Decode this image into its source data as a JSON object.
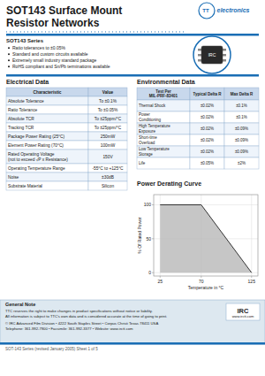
{
  "chart_data": {
    "type": "area",
    "title": "Power Derating Curve",
    "x_label": "Temperature in °C",
    "y_label": "% Of Rated Power",
    "x": [
      25,
      70,
      125
    ],
    "values": [
      100,
      100,
      0
    ],
    "xlim": [
      18,
      132
    ],
    "ylim": [
      -5,
      115
    ],
    "xticks": [
      25,
      70,
      125
    ],
    "yticks": [
      0,
      50,
      100
    ],
    "grid": true,
    "color": "#b8b8b8"
  },
  "page": {
    "title": [
      "SOT143 Surface Mount",
      "Resistor Networks"
    ],
    "logo": [
      "TT",
      "electronics"
    ],
    "series_label": "SOT143 Series",
    "bullets": [
      "Ratio tolerances to ±0.05%",
      "Standard and custom circuits available",
      "Extremely small industry standard package",
      "RoHS compliant and Sn/Pb terminations available"
    ],
    "chip_label": "IRC",
    "tables": [
      {
        "title": "Electrical Data",
        "headers": [
          "Characteristic",
          "Value"
        ],
        "rows": [
          [
            "Absolute Tolerance",
            "To ±0.1%"
          ],
          [
            "Ratio Tolerance",
            "To ±0.05%"
          ],
          [
            "Absolute TCR",
            "To ±25ppm/°C"
          ],
          [
            "Tracking TCR",
            "To ±25ppm/°C"
          ],
          [
            "Package Power Rating (25°C)",
            "250mW"
          ],
          [
            "Element Power Rating (70°C)",
            "100mW"
          ],
          [
            "Rated Operating Voltage\n(not to exceed √P x Resistance)",
            "150V"
          ],
          [
            "Operating Temperature Range",
            "-55°C to +125°C"
          ],
          [
            "Noise",
            "±30dB"
          ],
          [
            "Substrate Material",
            "Silicon"
          ]
        ]
      },
      {
        "title": "Environmental Data",
        "headers": [
          "Test Per\nMIL-PRF-83401",
          "Typical Delta R",
          "Max Delta R"
        ],
        "rows": [
          [
            "Thermal Shock",
            "±0.02%",
            "±0.1%"
          ],
          [
            "Power\nConditioning",
            "±0.02%",
            "±0.1%"
          ],
          [
            "High Temperature\nExposure",
            "±0.02%",
            "±0.09%"
          ],
          [
            "Short-time\nOverload",
            "±0.02%",
            "±0.09%"
          ],
          [
            "Low Temperature\nStorage",
            "±0.02%",
            "±0.09%"
          ],
          [
            "Life",
            "±0.05%",
            "±2%"
          ]
        ]
      }
    ],
    "footer": {
      "note": "General Note",
      "lines": [
        "TTC reserves the right to make changes in product specifications without notice or liability.",
        "All information is subject to TTC's own data and is considered accurate at the time of going to print.",
        "© IRC Advanced Film Division  •  4222 South Staples Street  •  Corpus Christi Texas 78411 USA",
        "Telephone: 361-992-7900  •  Facsimile: 361-992-3377  •  Website: www.irctt.com"
      ],
      "logo": [
        "IRC",
        "www.irctt.com"
      ],
      "part_number": "SOT-143 Series (revised January 2005) Sheet 1 of 5"
    }
  }
}
